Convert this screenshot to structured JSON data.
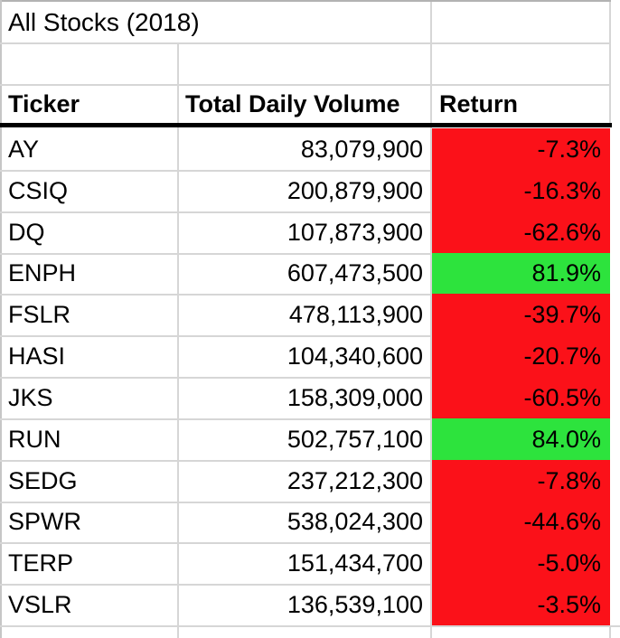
{
  "sheet": {
    "title": "All Stocks (2018)",
    "headers": {
      "ticker": "Ticker",
      "volume": "Total Daily Volume",
      "return": "Return"
    },
    "rows": [
      {
        "ticker": "AY",
        "volume": "83,079,900",
        "return": "-7.3%",
        "direction": "negative"
      },
      {
        "ticker": "CSIQ",
        "volume": "200,879,900",
        "return": "-16.3%",
        "direction": "negative"
      },
      {
        "ticker": "DQ",
        "volume": "107,873,900",
        "return": "-62.6%",
        "direction": "negative"
      },
      {
        "ticker": "ENPH",
        "volume": "607,473,500",
        "return": "81.9%",
        "direction": "positive"
      },
      {
        "ticker": "FSLR",
        "volume": "478,113,900",
        "return": "-39.7%",
        "direction": "negative"
      },
      {
        "ticker": "HASI",
        "volume": "104,340,600",
        "return": "-20.7%",
        "direction": "negative"
      },
      {
        "ticker": "JKS",
        "volume": "158,309,000",
        "return": "-60.5%",
        "direction": "negative"
      },
      {
        "ticker": "RUN",
        "volume": "502,757,100",
        "return": "84.0%",
        "direction": "positive"
      },
      {
        "ticker": "SEDG",
        "volume": "237,212,300",
        "return": "-7.8%",
        "direction": "negative"
      },
      {
        "ticker": "SPWR",
        "volume": "538,024,300",
        "return": "-44.6%",
        "direction": "negative"
      },
      {
        "ticker": "TERP",
        "volume": "151,434,700",
        "return": "-5.0%",
        "direction": "negative"
      },
      {
        "ticker": "VSLR",
        "volume": "136,539,100",
        "return": "-3.5%",
        "direction": "negative"
      }
    ],
    "colors": {
      "negative_fill": "#fb1119",
      "positive_fill": "#2de33d",
      "text": "#000000",
      "gridline": "#d6d6d6"
    }
  }
}
